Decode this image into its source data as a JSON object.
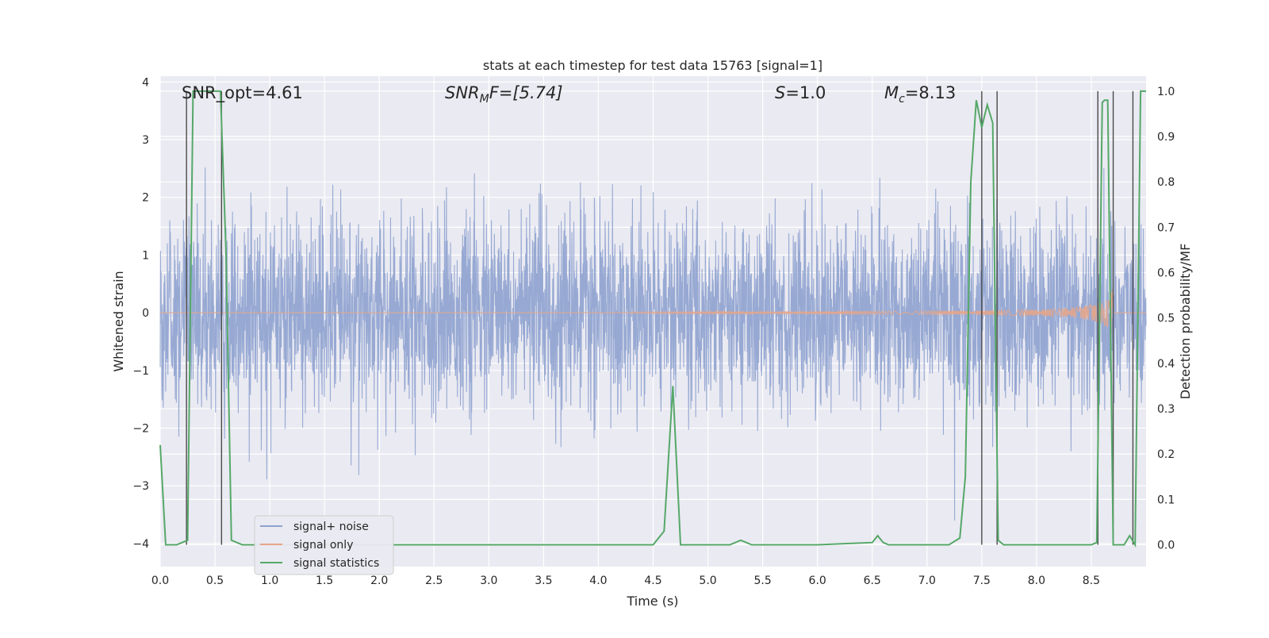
{
  "chart_data": {
    "type": "line",
    "title": "stats at each timestep for test data 15763 [signal=1]",
    "xlabel": "Time (s)",
    "ylabel": "Whitened strain",
    "ylabel_right": "Detection probability/MF",
    "xlim": [
      0.0,
      9.0
    ],
    "ylim": [
      -4.4,
      4.1
    ],
    "ylim_right": [
      -0.048,
      1.033
    ],
    "x_ticks": [
      "0.0",
      "0.5",
      "1.0",
      "1.5",
      "2.0",
      "2.5",
      "3.0",
      "3.5",
      "4.0",
      "4.5",
      "5.0",
      "5.5",
      "6.0",
      "6.5",
      "7.0",
      "7.5",
      "8.0",
      "8.5"
    ],
    "y_ticks": [
      "4",
      "3",
      "2",
      "1",
      "0",
      "−1",
      "−2",
      "−3",
      "−4"
    ],
    "y_ticks_right": [
      "1.0",
      "0.9",
      "0.8",
      "0.7",
      "0.6",
      "0.5",
      "0.4",
      "0.3",
      "0.2",
      "0.1",
      "0.0"
    ],
    "grid": true,
    "legend_position": "lower-left",
    "annotations": {
      "snr_opt": "SNR_opt=4.61",
      "snr_mf_main": "SNR",
      "snr_mf_sub": "M",
      "snr_mf_tail": "F=[5.74]",
      "s_main": "S",
      "s_tail": "=1.0",
      "mc_main": "M",
      "mc_sub": "c",
      "mc_tail": "=8.13"
    },
    "series": [
      {
        "name": "signal+ noise",
        "color": "#8ea2cf",
        "description_values": "white noise, amplitude roughly within [-2, 2] with spikes up to ~3.9 and down to ~-3.6",
        "noise_sigma": 0.8
      },
      {
        "name": "signal only",
        "color": "#e6a58a",
        "chirp": {
          "start": 4.3,
          "end": 8.7,
          "peak_amplitude": 0.45
        }
      },
      {
        "name": "signal statistics",
        "color": "#55a868",
        "x": [
          0.0,
          0.05,
          0.1,
          0.15,
          0.2,
          0.25,
          0.3,
          0.35,
          0.4,
          0.45,
          0.5,
          0.55,
          0.6,
          0.65,
          0.7,
          0.75,
          0.8,
          0.9,
          1.0,
          1.5,
          2.0,
          2.5,
          3.0,
          3.5,
          4.0,
          4.5,
          4.6,
          4.68,
          4.75,
          4.82,
          4.9,
          5.0,
          5.2,
          5.3,
          5.4,
          5.6,
          6.0,
          6.5,
          6.55,
          6.6,
          6.65,
          6.7,
          6.75,
          6.8,
          7.0,
          7.2,
          7.3,
          7.35,
          7.4,
          7.45,
          7.5,
          7.55,
          7.6,
          7.65,
          7.7,
          7.75,
          8.0,
          8.5,
          8.55,
          8.6,
          8.62,
          8.65,
          8.7,
          8.75,
          8.8,
          8.85,
          8.9,
          8.95,
          9.0
        ],
        "y": [
          0.22,
          0.0,
          0.0,
          0.0,
          0.005,
          0.01,
          1.0,
          1.0,
          1.0,
          1.0,
          1.0,
          1.0,
          0.65,
          0.01,
          0.005,
          0.0,
          0.0,
          0.0,
          0.0,
          0.0,
          0.0,
          0.0,
          0.0,
          0.0,
          0.0,
          0.0,
          0.03,
          0.35,
          0.0,
          0.0,
          0.0,
          0.0,
          0.0,
          0.01,
          0.0,
          0.0,
          0.0,
          0.005,
          0.02,
          0.005,
          0.0,
          0.0,
          0.0,
          0.0,
          0.0,
          0.0,
          0.015,
          0.15,
          0.8,
          0.98,
          0.92,
          0.97,
          0.93,
          0.01,
          0.0,
          0.0,
          0.0,
          0.0,
          0.005,
          0.975,
          0.98,
          0.98,
          0.0,
          0.0,
          0.0,
          0.02,
          0.0,
          1.0,
          1.0
        ]
      }
    ],
    "vertical_markers_x": [
      0.24,
      0.56,
      7.5,
      7.64,
      8.56,
      8.7,
      8.88
    ]
  }
}
